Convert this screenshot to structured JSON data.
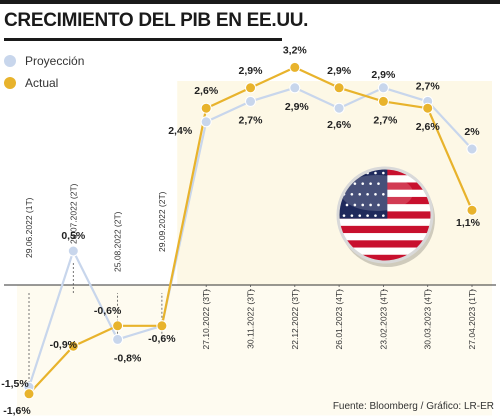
{
  "title": "CRECIMIENTO DEL PIB EN EE.UU.",
  "source": "Fuente: Bloomberg / Gráfico: LR-ER",
  "colors": {
    "proyeccion": "#c8d6ec",
    "actual": "#e8b32c",
    "band": "#fdf8e6",
    "accent": "#1a1a1a"
  },
  "legend": [
    {
      "name": "Proyección",
      "color": "#c8d6ec"
    },
    {
      "name": "Actual",
      "color": "#e8b32c"
    }
  ],
  "chart_data": {
    "type": "line",
    "title": "CRECIMIENTO DEL PIB EN EE.UU.",
    "xlabel": "",
    "ylabel": "",
    "ylim": [
      -1.8,
      3.4
    ],
    "grid": false,
    "legend_position": "top-left",
    "categories": [
      "29.06.2022 (1T)",
      "28.07.2022 (2T)",
      "25.08.2022 (2T)",
      "29.09.2022 (2T)",
      "27.10.2022 (3T)",
      "30.11.2022 (3T)",
      "22.12.2022 (3T)",
      "26.01.2023 (4T)",
      "23.02.2023 (4T)",
      "30.03.2023 (4T)",
      "27.04.2023 (1T)"
    ],
    "series": [
      {
        "name": "Proyección",
        "values": [
          -1.5,
          0.5,
          -0.8,
          -0.6,
          2.4,
          2.7,
          2.9,
          2.6,
          2.9,
          2.7,
          2.0
        ]
      },
      {
        "name": "Actual",
        "values": [
          -1.6,
          -0.9,
          -0.6,
          -0.6,
          2.6,
          2.9,
          3.2,
          2.9,
          2.7,
          2.6,
          1.1
        ]
      }
    ],
    "proyeccion_labels": [
      "-1,5%",
      "0,5%",
      "-0,8%",
      "-0,6%",
      "2,4%",
      "2,7%",
      "2,9%",
      "2,6%",
      "2,9%",
      "2,7%",
      "2%"
    ],
    "actual_labels": [
      "-1,6%",
      "-0,9%",
      "-0,6%",
      "",
      "2,6%",
      "2,9%",
      "3,2%",
      "2,9%",
      "2,7%",
      "2,6%",
      "1,1%"
    ]
  },
  "flag_icon": "us-flag-icon"
}
